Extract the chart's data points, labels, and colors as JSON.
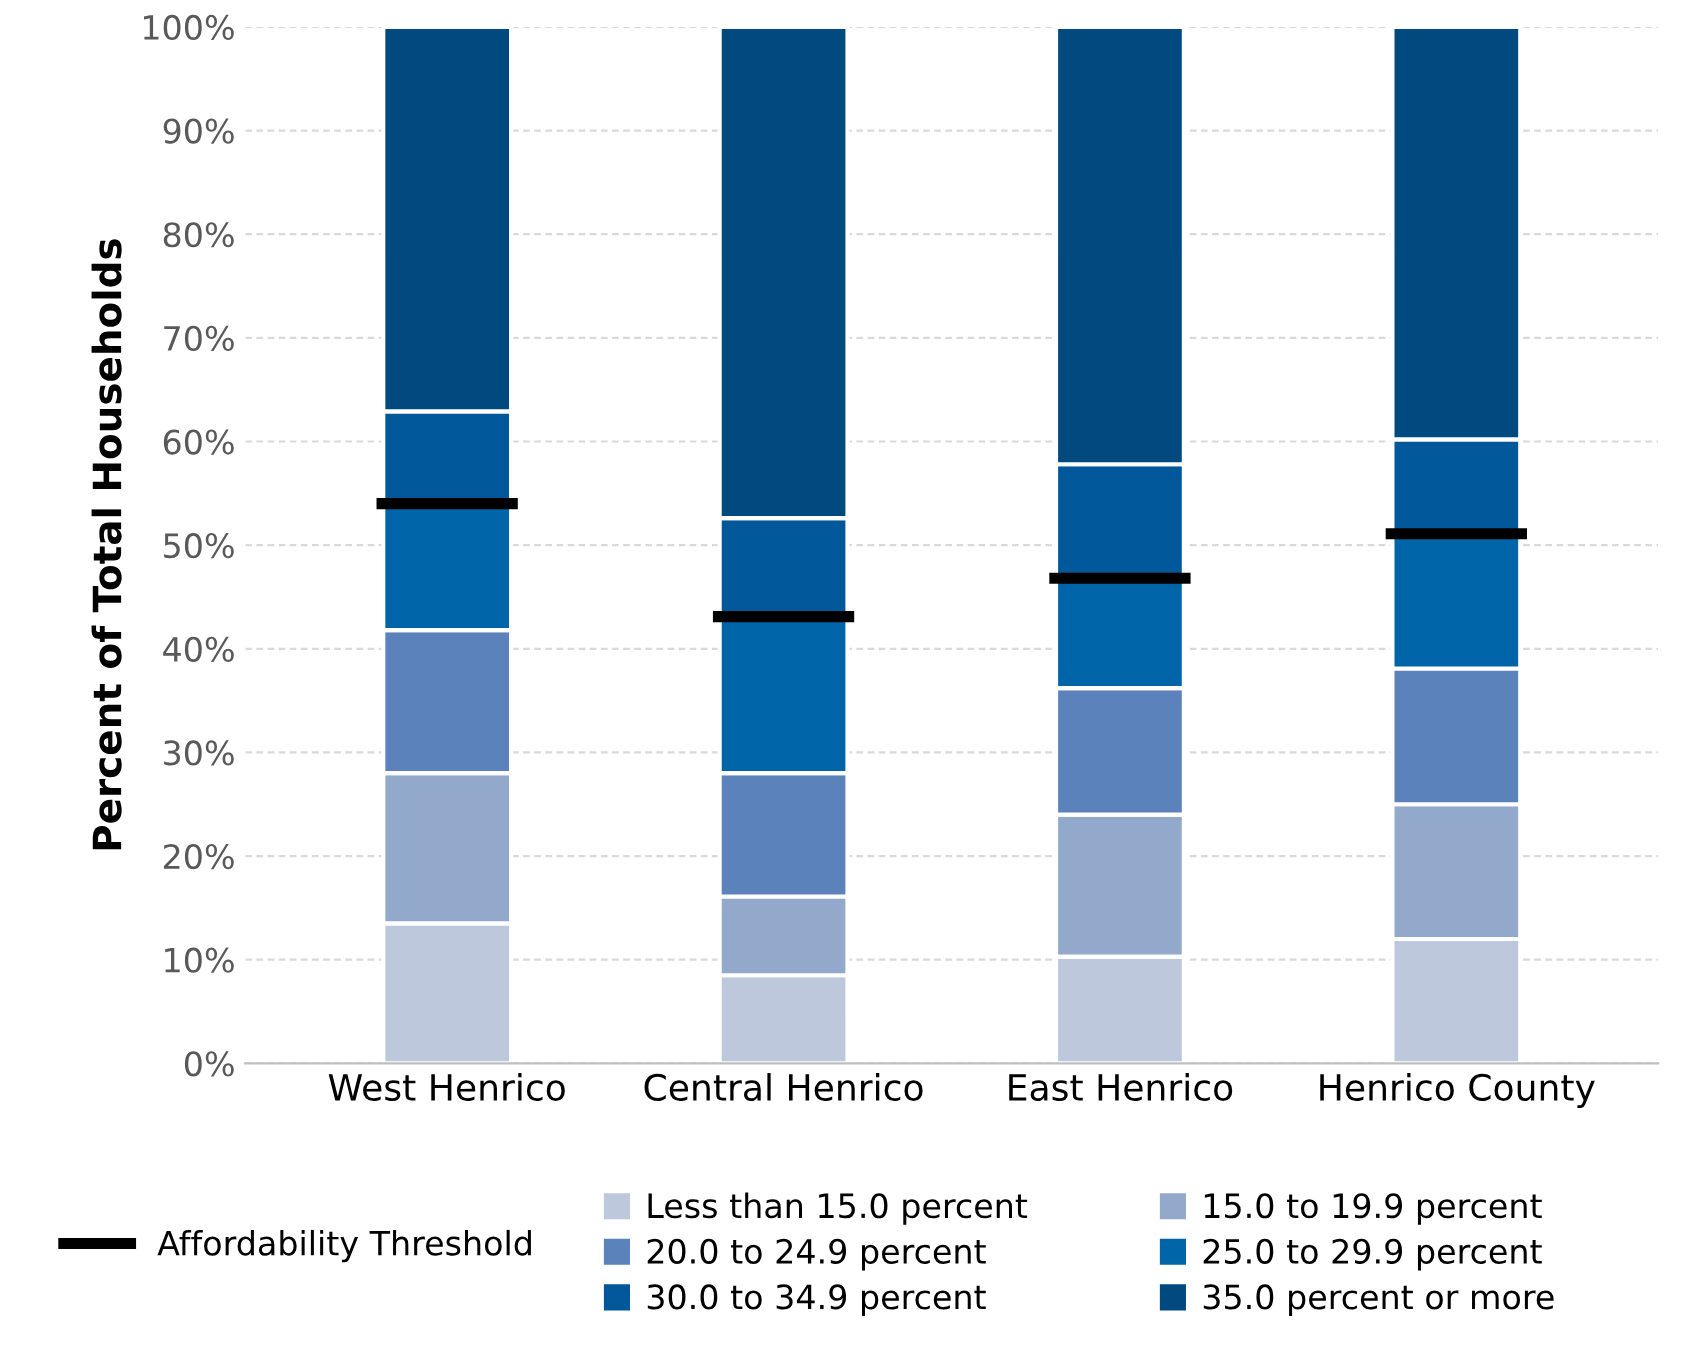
{
  "chart_data": {
    "type": "bar",
    "stacked": true,
    "ylabel": "Percent of Total Households",
    "categories": [
      "West Henrico",
      "Central Henrico",
      "East Henrico",
      "Henrico County"
    ],
    "series": [
      {
        "name": "Less than 15.0 percent",
        "color": "#bdc8dc",
        "values": [
          13.5,
          8.5,
          10.3,
          12.0
        ]
      },
      {
        "name": "15.0 to 19.9 percent",
        "color": "#93a9cc",
        "values": [
          14.5,
          7.6,
          13.7,
          13.0
        ]
      },
      {
        "name": "20.0 to 24.9 percent",
        "color": "#5b82bb",
        "values": [
          13.8,
          11.9,
          12.2,
          13.1
        ]
      },
      {
        "name": "25.0 to 29.9 percent",
        "color": "#0064a8",
        "values": [
          12.2,
          15.1,
          10.6,
          13.0
        ]
      },
      {
        "name": "30.0 to 34.9 percent",
        "color": "#00579a",
        "values": [
          8.9,
          9.5,
          11.0,
          9.1
        ]
      },
      {
        "name": "35.0 percent or more",
        "color": "#004a80",
        "values": [
          37.1,
          47.4,
          42.2,
          39.8
        ]
      }
    ],
    "ref_lines": [
      {
        "axis": "y",
        "value": 54.0,
        "label": "Affordability Threshold",
        "color": "#000000"
      },
      {
        "axis": "y",
        "value": 43.1,
        "color": "#000000"
      },
      {
        "axis": "y",
        "value": 46.8,
        "color": "#000000"
      },
      {
        "axis": "y",
        "value": 51.1,
        "color": "#000000"
      }
    ],
    "ylim": [
      0,
      100
    ],
    "yticks": [
      {
        "value": 0,
        "label": "0%"
      },
      {
        "value": 10,
        "label": "10%"
      },
      {
        "value": 20,
        "label": "20%"
      },
      {
        "value": 30,
        "label": "30%"
      },
      {
        "value": 40,
        "label": "40%"
      },
      {
        "value": 50,
        "label": "50%"
      },
      {
        "value": 60,
        "label": "60%"
      },
      {
        "value": 70,
        "label": "70%"
      },
      {
        "value": 80,
        "label": "80%"
      },
      {
        "value": 90,
        "label": "90%"
      },
      {
        "value": 100,
        "label": "100%"
      }
    ],
    "grid": "y",
    "legend": "bottom"
  }
}
